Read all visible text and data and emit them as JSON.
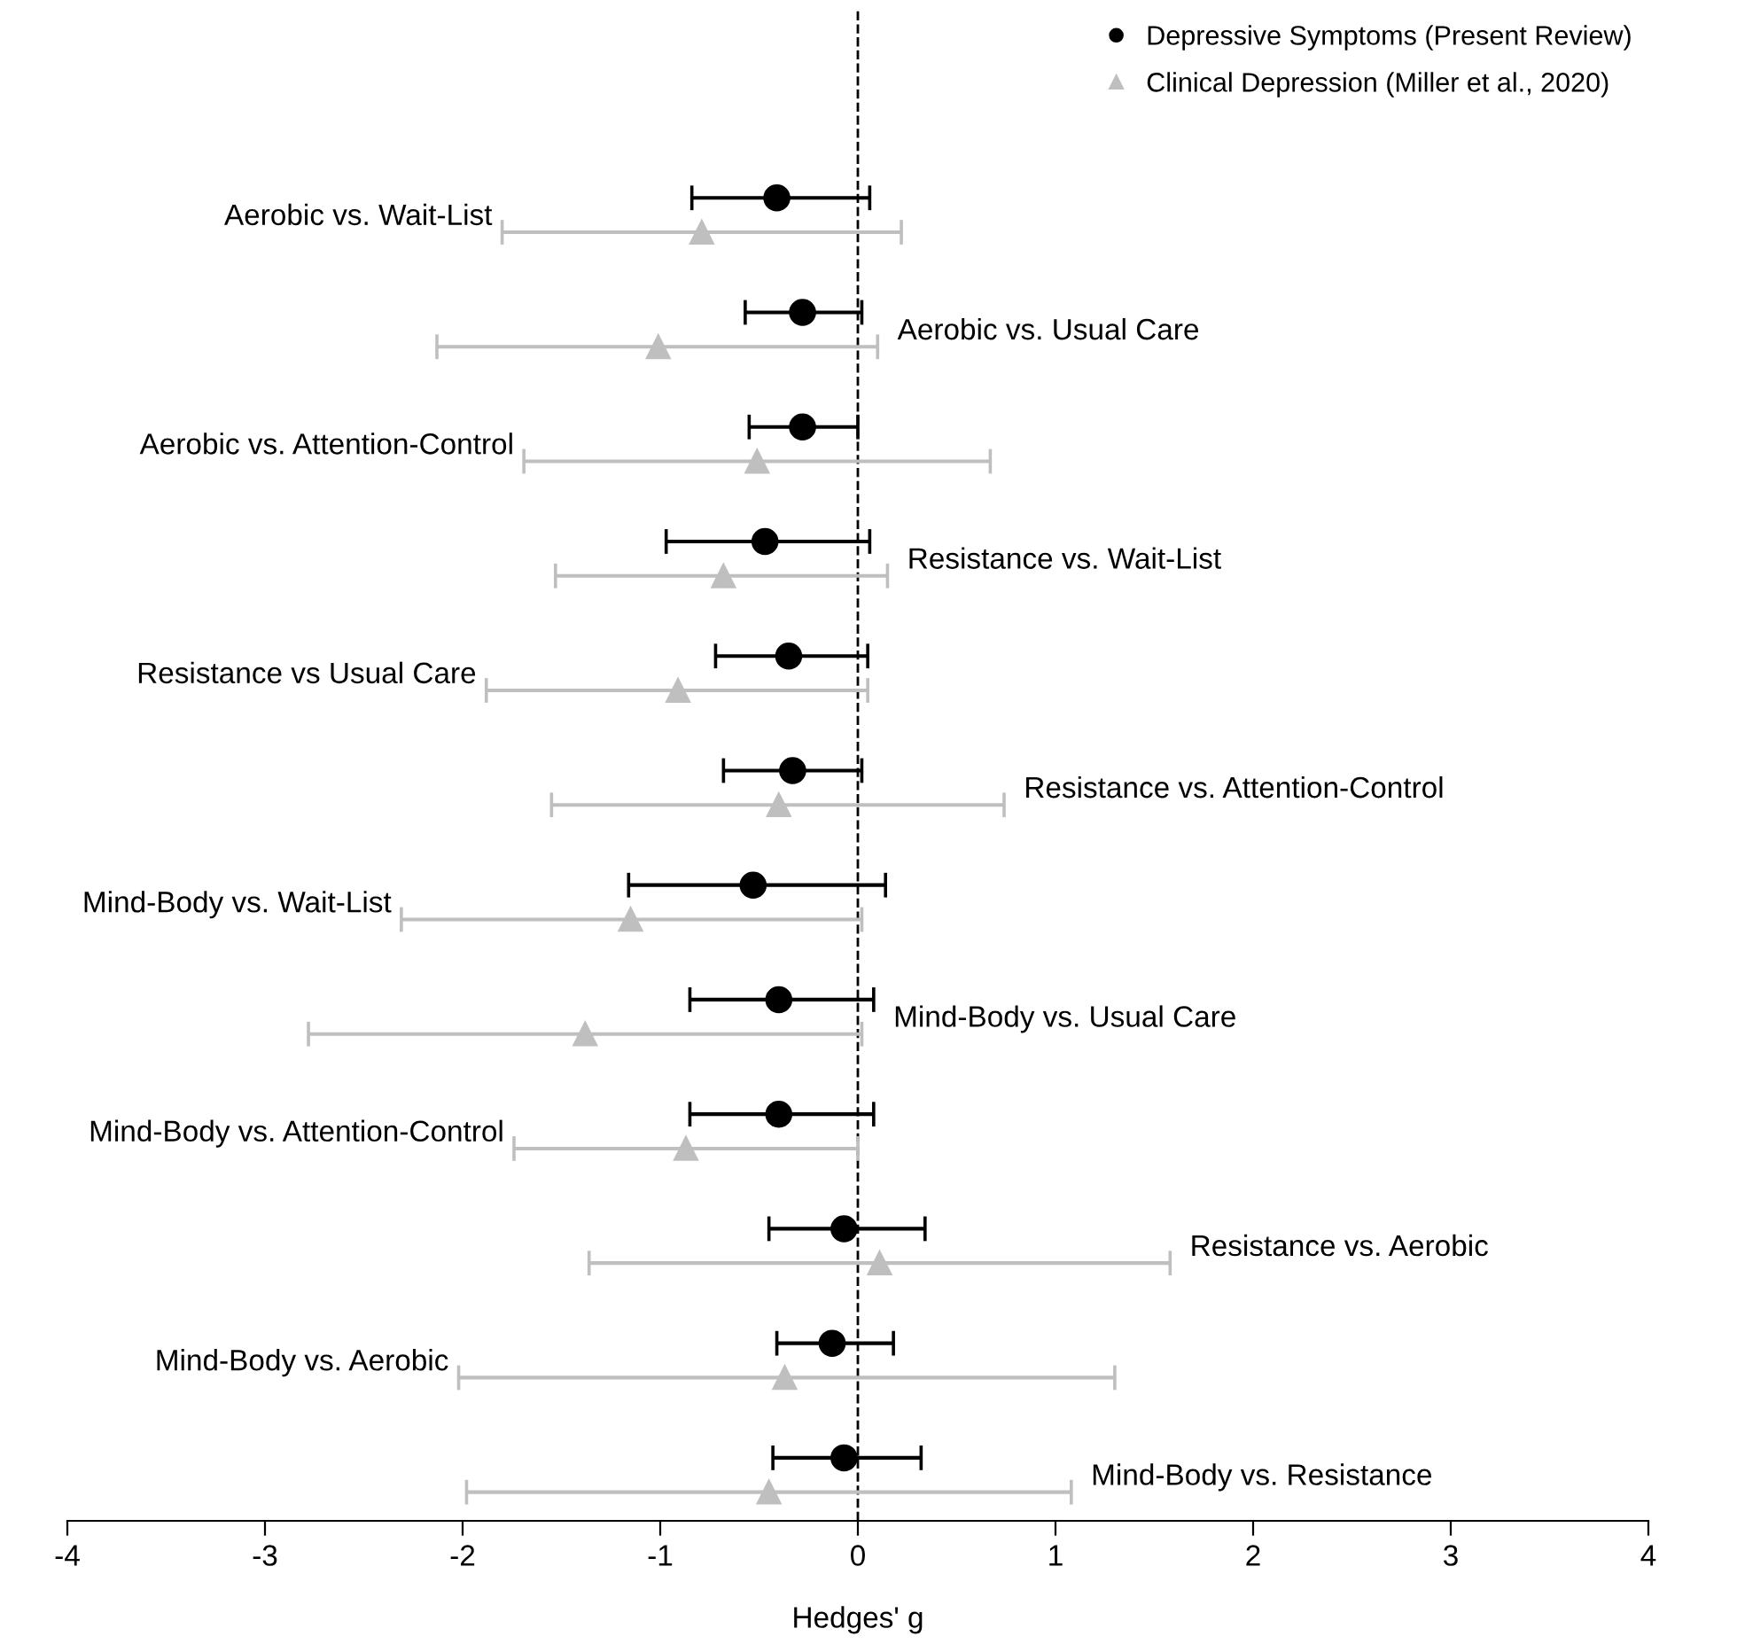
{
  "chart_data": {
    "type": "scatter",
    "orientation": "horizontal",
    "xlabel": "Hedges' g",
    "categories": [
      "Aerobic vs. Wait-List",
      "Aerobic vs. Usual Care",
      "Aerobic vs. Attention-Control",
      "Resistance vs. Wait-List",
      "Resistance vs Usual Care",
      "Resistance vs. Attention-Control",
      "Mind-Body vs. Wait-List",
      "Mind-Body vs. Usual Care",
      "Mind-Body vs. Attention-Control",
      "Resistance vs. Aerobic",
      "Mind-Body vs. Aerobic",
      "Mind-Body vs. Resistance"
    ],
    "series": [
      {
        "name": "Depressive Symptoms (Present Review)",
        "color": "#000000",
        "marker": "circle",
        "values": [
          -0.41,
          -0.28,
          -0.28,
          -0.47,
          -0.35,
          -0.33,
          -0.53,
          -0.4,
          -0.4,
          -0.07,
          -0.13,
          -0.07
        ],
        "errors": [
          [
            -0.84,
            0.06
          ],
          [
            -0.57,
            0.02
          ],
          [
            -0.55,
            0.0
          ],
          [
            -0.97,
            0.06
          ],
          [
            -0.72,
            0.05
          ],
          [
            -0.68,
            0.02
          ],
          [
            -1.16,
            0.14
          ],
          [
            -0.85,
            0.08
          ],
          [
            -0.85,
            0.08
          ],
          [
            -0.45,
            0.34
          ],
          [
            -0.41,
            0.18
          ],
          [
            -0.43,
            0.32
          ]
        ]
      },
      {
        "name": "Clinical Depression (Miller et al., 2020)",
        "color": "#bfbfbf",
        "marker": "triangle",
        "values": [
          -0.79,
          -1.01,
          -0.51,
          -0.68,
          -0.91,
          -0.4,
          -1.15,
          -1.38,
          -0.87,
          0.11,
          -0.37,
          -0.45
        ],
        "errors": [
          [
            -1.8,
            0.22
          ],
          [
            -2.13,
            0.1
          ],
          [
            -1.69,
            0.67
          ],
          [
            -1.53,
            0.15
          ],
          [
            -1.88,
            0.05
          ],
          [
            -1.55,
            0.74
          ],
          [
            -2.31,
            0.02
          ],
          [
            -2.78,
            0.02
          ],
          [
            -1.74,
            0.0
          ],
          [
            -1.36,
            1.58
          ],
          [
            -2.02,
            1.3
          ],
          [
            -1.98,
            1.08
          ]
        ]
      }
    ],
    "xlim": [
      -4,
      4
    ],
    "xticks": [
      -4,
      -3,
      -2,
      -1,
      0,
      1,
      2,
      3,
      4
    ],
    "ref_lines": [
      {
        "axis": "x",
        "value": 0,
        "color": "#000000",
        "line_style": "dashed"
      }
    ],
    "grid": false,
    "legend": "top right"
  }
}
